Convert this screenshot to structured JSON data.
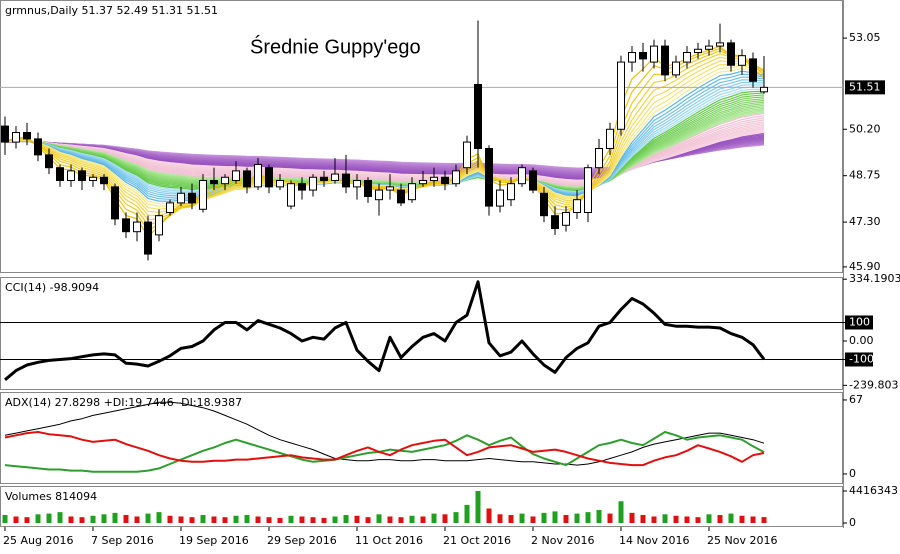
{
  "chart_data": [
    {
      "type": "candlestick",
      "title": "grmnus,Daily  51.37 52.49 51.31 51.51",
      "annotation": "Średnie Guppy'ego",
      "up_color": "#ffffff",
      "down_color": "#000000",
      "last_price": 51.51,
      "ylim": [
        45.74,
        54.24
      ],
      "yticks": [
        53.05,
        {
          "value": 50.2,
          "label": "50.20"
        },
        48.75,
        {
          "value": 47.3,
          "label": "47.30"
        },
        {
          "value": 45.9,
          "label": "45.90"
        }
      ],
      "series": {
        "open": [
          50.3,
          49.8,
          50.1,
          49.9,
          49.4,
          49.0,
          48.6,
          48.9,
          48.6,
          48.7,
          48.4,
          47.4,
          47.0,
          47.3,
          46.9,
          47.6,
          47.9,
          48.2,
          47.7,
          48.6,
          48.5,
          48.6,
          48.9,
          48.4,
          49.0,
          48.4,
          47.8,
          48.5,
          48.3,
          48.7,
          48.6,
          48.8,
          48.4,
          48.6,
          48.0,
          48.3,
          48.3,
          48.0,
          48.5,
          48.6,
          48.7,
          48.5,
          49.0,
          51.6,
          49.6,
          47.8,
          48.0,
          48.5,
          48.9,
          48.2,
          47.5,
          47.2,
          47.6,
          47.6,
          49.0,
          49.6,
          50.2,
          52.3,
          52.6,
          52.3,
          52.8,
          51.9,
          52.3,
          52.6,
          52.7,
          52.8,
          52.9,
          52.2,
          52.4,
          51.37
        ],
        "high": [
          50.6,
          50.3,
          50.4,
          50.1,
          49.6,
          49.1,
          49.1,
          49.0,
          48.8,
          48.8,
          48.5,
          47.6,
          47.6,
          47.5,
          47.7,
          48.0,
          48.4,
          48.5,
          48.8,
          49.0,
          48.8,
          49.2,
          49.0,
          49.3,
          49.1,
          48.8,
          48.6,
          48.7,
          48.8,
          48.9,
          49.3,
          49.4,
          48.8,
          48.7,
          48.5,
          48.8,
          48.5,
          48.7,
          48.9,
          49.0,
          48.9,
          49.1,
          50.0,
          53.6,
          49.7,
          48.6,
          48.7,
          49.1,
          49.0,
          48.4,
          47.8,
          47.8,
          48.3,
          49.1,
          49.9,
          50.4,
          52.5,
          52.8,
          52.9,
          53.0,
          53.0,
          52.5,
          52.8,
          52.9,
          53.0,
          53.5,
          53.0,
          52.7,
          52.6,
          52.49
        ],
        "low": [
          49.4,
          49.6,
          49.7,
          49.2,
          48.8,
          48.4,
          48.4,
          48.3,
          48.4,
          48.3,
          47.2,
          46.8,
          46.7,
          46.1,
          46.7,
          47.5,
          47.8,
          47.7,
          47.6,
          48.3,
          48.3,
          48.5,
          48.2,
          48.3,
          48.2,
          48.3,
          47.7,
          48.0,
          48.1,
          48.4,
          48.5,
          48.2,
          48.0,
          47.9,
          47.5,
          48.0,
          47.8,
          47.9,
          48.4,
          48.4,
          48.3,
          48.4,
          48.8,
          49.0,
          47.5,
          47.6,
          47.8,
          48.4,
          48.2,
          47.3,
          46.9,
          47.0,
          47.4,
          47.3,
          48.8,
          49.4,
          50.0,
          52.0,
          52.0,
          52.1,
          51.7,
          51.8,
          52.1,
          52.4,
          52.5,
          52.6,
          52.0,
          51.9,
          51.5,
          51.31
        ],
        "close": [
          49.8,
          50.1,
          49.9,
          49.4,
          49.0,
          48.6,
          48.9,
          48.6,
          48.7,
          48.5,
          47.4,
          47.0,
          47.3,
          46.3,
          47.5,
          47.9,
          48.2,
          47.9,
          48.6,
          48.5,
          48.7,
          48.9,
          48.4,
          49.1,
          48.4,
          48.6,
          48.5,
          48.3,
          48.7,
          48.6,
          48.8,
          48.4,
          48.6,
          48.1,
          48.3,
          48.4,
          47.9,
          48.5,
          48.6,
          48.7,
          48.5,
          48.9,
          49.8,
          49.6,
          47.8,
          48.3,
          48.5,
          49.0,
          48.3,
          47.5,
          47.1,
          47.6,
          48.0,
          49.0,
          49.6,
          50.2,
          52.3,
          52.6,
          52.4,
          52.8,
          51.9,
          52.3,
          52.6,
          52.7,
          52.8,
          52.9,
          52.2,
          52.5,
          51.7,
          51.51
        ]
      }
    },
    {
      "type": "line",
      "title": "CCI(14) -98.9094",
      "color": "#000000",
      "ylim": [
        -265,
        346
      ],
      "yticks": [
        {
          "value": 334.1903,
          "label": "334.1903"
        },
        100,
        {
          "value": 0,
          "label": "0.00"
        },
        -100,
        -239.803
      ],
      "levels": [
        100,
        -100
      ],
      "values": [
        -210,
        -160,
        -130,
        -115,
        -105,
        -100,
        -95,
        -85,
        -75,
        -70,
        -75,
        -120,
        -125,
        -135,
        -110,
        -80,
        -40,
        -30,
        0,
        60,
        100,
        100,
        60,
        110,
        90,
        70,
        40,
        0,
        20,
        10,
        70,
        100,
        -50,
        -110,
        -160,
        20,
        -90,
        -30,
        20,
        40,
        0,
        100,
        140,
        320,
        -10,
        -80,
        -60,
        0,
        -70,
        -130,
        -170,
        -90,
        -40,
        -10,
        80,
        100,
        170,
        230,
        200,
        150,
        90,
        80,
        80,
        75,
        75,
        70,
        40,
        20,
        -20,
        -98.9094
      ]
    },
    {
      "type": "line",
      "title": "ADX(14) 27.8298 +DI:19.7446 -DI:18.9387",
      "ylim": [
        -8.2,
        74.2
      ],
      "yticks": [
        67,
        0
      ],
      "series": [
        {
          "color": "#000000",
          "values": [
            35,
            37,
            39,
            41,
            43,
            45,
            48,
            50,
            53,
            55,
            57,
            59,
            61,
            63,
            65,
            65,
            64,
            62,
            60,
            57,
            53,
            49,
            45,
            40,
            35,
            31,
            28,
            25,
            22,
            18,
            14,
            13,
            12,
            12,
            13,
            13,
            12,
            12,
            13,
            13,
            12,
            12,
            12,
            13,
            14,
            13,
            12,
            11,
            11,
            10,
            9,
            9,
            8,
            9,
            11,
            14,
            17,
            20,
            24,
            27,
            29,
            31,
            33,
            35,
            37,
            37,
            35,
            33,
            31,
            27.8298
          ]
        },
        {
          "color": "#2e9e2e",
          "values": [
            8,
            7,
            6,
            5,
            4,
            4,
            3,
            3,
            2,
            2,
            2,
            2,
            2,
            3,
            5,
            9,
            13,
            17,
            21,
            24,
            28,
            31,
            28,
            25,
            22,
            19,
            16,
            13,
            11,
            12,
            13,
            15,
            17,
            19,
            20,
            22,
            21,
            20,
            22,
            24,
            26,
            30,
            35,
            31,
            26,
            30,
            33,
            25,
            18,
            14,
            11,
            8,
            14,
            20,
            26,
            28,
            31,
            28,
            26,
            32,
            38,
            35,
            31,
            33,
            34,
            35,
            33,
            31,
            25,
            19.7446
          ]
        },
        {
          "color": "#e01010",
          "values": [
            33,
            35,
            37,
            38,
            36,
            35,
            34,
            31,
            29,
            30,
            31,
            27,
            24,
            21,
            17,
            14,
            12,
            11,
            11,
            12,
            12,
            13,
            13,
            14,
            15,
            16,
            17,
            15,
            14,
            13,
            13,
            17,
            21,
            24,
            20,
            17,
            22,
            26,
            28,
            30,
            31,
            24,
            17,
            20,
            24,
            25,
            26,
            23,
            20,
            21,
            22,
            20,
            17,
            14,
            12,
            10,
            9,
            8,
            8,
            12,
            15,
            17,
            21,
            26,
            23,
            20,
            16,
            11,
            17,
            18.9387
          ]
        }
      ]
    },
    {
      "type": "bar",
      "title": "Volumes 814094",
      "up_color": "#1fa01f",
      "down_color": "#e01010",
      "ylim": [
        0,
        4416343
      ],
      "yticks": [
        4416343,
        0
      ],
      "values": [
        1100000,
        900000,
        800000,
        1200000,
        1300000,
        1500000,
        900000,
        800000,
        1000000,
        1200000,
        1400000,
        1100000,
        900000,
        1300000,
        1500000,
        1000000,
        900000,
        800000,
        1100000,
        900000,
        800000,
        1000000,
        1100000,
        900000,
        800000,
        700000,
        1000000,
        900000,
        800000,
        700000,
        900000,
        1100000,
        1000000,
        800000,
        1200000,
        900000,
        800000,
        1000000,
        900000,
        1300000,
        1200000,
        1500000,
        2500000,
        4416343,
        2000000,
        1200000,
        1100000,
        1300000,
        900000,
        1400000,
        1600000,
        1100000,
        1300000,
        1500000,
        1800000,
        1300000,
        3000000,
        1400000,
        1100000,
        900000,
        1200000,
        1000000,
        900000,
        800000,
        1200000,
        1100000,
        1300000,
        1000000,
        900000,
        814094
      ],
      "xticks": [
        {
          "value": 0,
          "label": "25 Aug 2016"
        },
        {
          "value": 8,
          "label": "7 Sep 2016"
        },
        {
          "value": 16,
          "label": "19 Sep 2016"
        },
        {
          "value": 24,
          "label": "29 Sep 2016"
        },
        {
          "value": 32,
          "label": "11 Oct 2016"
        },
        {
          "value": 40,
          "label": "21 Oct 2016"
        },
        {
          "value": 48,
          "label": "2 Nov 2016"
        },
        {
          "value": 56,
          "label": "14 Nov 2016"
        },
        {
          "value": 64,
          "label": "25 Nov 2016"
        }
      ]
    }
  ]
}
